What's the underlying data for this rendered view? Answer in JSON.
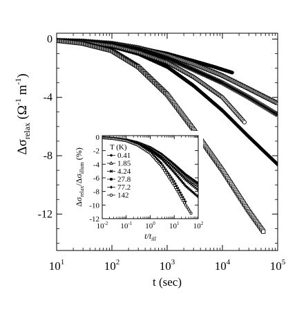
{
  "chart_data": [
    {
      "type": "scatter",
      "xlabel": "t (sec)",
      "ylabel_main": "Δσ",
      "ylabel_sub": "relax",
      "ylabel_units_open": " (Ω",
      "ylabel_units_exp": "-1",
      "ylabel_units_m": " m",
      "ylabel_units_mexp": "-1",
      "ylabel_units_close": ")",
      "x_scale": "log",
      "xlim": [
        10,
        100000
      ],
      "ylim": [
        -14.5,
        0.4
      ],
      "x_ticks": [
        10,
        100,
        1000,
        10000,
        100000
      ],
      "x_tick_labels": [
        {
          "base": "10",
          "exp": "1"
        },
        {
          "base": "10",
          "exp": "2"
        },
        {
          "base": "10",
          "exp": "3"
        },
        {
          "base": "10",
          "exp": "4"
        },
        {
          "base": "10",
          "exp": "5"
        }
      ],
      "y_ticks": [
        0,
        -4,
        -8,
        -12
      ],
      "y_tick_labels": [
        "0",
        "-4",
        "-8",
        "-12"
      ],
      "series": [
        {
          "marker": "filled-circle",
          "x": [
            10,
            30,
            100,
            300,
            1000,
            3000,
            7000,
            15000
          ],
          "y": [
            -0.1,
            -0.15,
            -0.3,
            -0.6,
            -1.0,
            -1.5,
            -1.9,
            -2.3
          ]
        },
        {
          "marker": "triangle",
          "x": [
            10,
            30,
            100,
            300,
            1000,
            3000,
            10000,
            30000,
            100000
          ],
          "y": [
            -0.1,
            -0.15,
            -0.3,
            -0.6,
            -1.1,
            -1.7,
            -2.5,
            -3.4,
            -4.4
          ]
        },
        {
          "marker": "cross",
          "x": [
            10,
            30,
            100,
            300,
            1000,
            3000,
            10000,
            30000,
            100000
          ],
          "y": [
            -0.1,
            -0.15,
            -0.35,
            -0.7,
            -1.3,
            -2.1,
            -3.0,
            -4.0,
            -5.2
          ]
        },
        {
          "marker": "diamond",
          "x": [
            10,
            30,
            100,
            300,
            1000,
            3000,
            10000,
            30000,
            100000
          ],
          "y": [
            -0.1,
            -0.2,
            -0.5,
            -1.0,
            -1.9,
            -3.2,
            -4.9,
            -6.7,
            -8.6
          ]
        },
        {
          "marker": "open-circle",
          "x": [
            10,
            30,
            100,
            300,
            1000,
            3000,
            10000,
            25000
          ],
          "y": [
            -0.1,
            -0.2,
            -0.45,
            -0.9,
            -1.6,
            -2.6,
            -4.0,
            -5.7
          ]
        },
        {
          "marker": "open-square",
          "x": [
            10,
            30,
            100,
            300,
            1000,
            3000,
            10000,
            30000,
            55000
          ],
          "y": [
            -0.1,
            -0.3,
            -0.8,
            -1.9,
            -3.8,
            -6.2,
            -9.0,
            -11.8,
            -13.2
          ]
        }
      ]
    },
    {
      "type": "scatter",
      "inset": true,
      "xlabel_base": "t/t",
      "xlabel_sub": "ill",
      "ylabel_a": "Δσ",
      "ylabel_a_sub": "relax",
      "ylabel_sep": "/Δσ",
      "ylabel_b_sub": "illum",
      "ylabel_units": " (%)",
      "x_scale": "log",
      "xlim": [
        0.01,
        100
      ],
      "ylim": [
        -12,
        0.2
      ],
      "x_ticks": [
        0.01,
        0.1,
        1,
        10,
        100
      ],
      "x_tick_labels": [
        {
          "base": "10",
          "exp": "-2"
        },
        {
          "base": "10",
          "exp": "-1"
        },
        {
          "base": "10",
          "exp": "0"
        },
        {
          "base": "10",
          "exp": "1"
        },
        {
          "base": "10",
          "exp": "2"
        }
      ],
      "y_ticks": [
        0,
        -2,
        -4,
        -6,
        -8,
        -10,
        -12
      ],
      "y_tick_labels": [
        "0",
        "-2",
        "-4",
        "-6",
        "-8",
        "-10",
        "-12"
      ],
      "legend_title": "T (K)",
      "legend_position": "top-left",
      "series": [
        {
          "name": "0.41",
          "marker": "filled-circle",
          "x": [
            0.01,
            0.03,
            0.1,
            0.3,
            1,
            3,
            10,
            30,
            100
          ],
          "y": [
            -0.1,
            -0.2,
            -0.4,
            -0.8,
            -1.5,
            -2.5,
            -4.0,
            -5.5,
            -6.8
          ]
        },
        {
          "name": "1.85",
          "marker": "triangle",
          "x": [
            0.01,
            0.03,
            0.1,
            0.3,
            1,
            3,
            10,
            30,
            100
          ],
          "y": [
            -0.1,
            -0.2,
            -0.45,
            -0.85,
            -1.6,
            -2.7,
            -4.3,
            -5.9,
            -7.2
          ]
        },
        {
          "name": "4.24",
          "marker": "cross",
          "x": [
            0.01,
            0.03,
            0.1,
            0.3,
            1,
            3,
            10,
            30,
            100
          ],
          "y": [
            -0.1,
            -0.2,
            -0.45,
            -0.9,
            -1.7,
            -2.9,
            -4.6,
            -6.3,
            -7.8
          ]
        },
        {
          "name": "27.8",
          "marker": "filled-square",
          "x": [
            0.01,
            0.03,
            0.1,
            0.3,
            1,
            3,
            10,
            30,
            100
          ],
          "y": [
            -0.1,
            -0.2,
            -0.5,
            -1.0,
            -1.9,
            -3.2,
            -5.2,
            -7.2,
            -8.8
          ]
        },
        {
          "name": "77.2",
          "marker": "diamond",
          "x": [
            0.01,
            0.03,
            0.1,
            0.3,
            1,
            3,
            10,
            30
          ],
          "y": [
            -0.1,
            -0.2,
            -0.5,
            -1.1,
            -2.2,
            -3.9,
            -6.5,
            -9.5
          ]
        },
        {
          "name": "142",
          "marker": "open-circle",
          "x": [
            0.01,
            0.03,
            0.1,
            0.3,
            1,
            3,
            10,
            30,
            50
          ],
          "y": [
            -0.1,
            -0.25,
            -0.55,
            -1.2,
            -2.4,
            -4.3,
            -7.1,
            -10.0,
            -11.2
          ]
        }
      ]
    }
  ]
}
